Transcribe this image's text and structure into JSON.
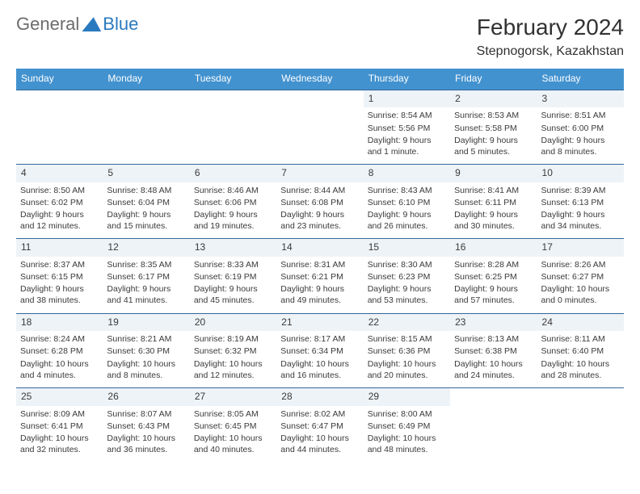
{
  "brand": {
    "part1": "General",
    "part2": "Blue"
  },
  "title": "February 2024",
  "location": "Stepnogorsk, Kazakhstan",
  "dayHeaders": [
    "Sunday",
    "Monday",
    "Tuesday",
    "Wednesday",
    "Thursday",
    "Friday",
    "Saturday"
  ],
  "colors": {
    "header_bg": "#4292cf",
    "header_text": "#ffffff",
    "rule": "#34679b",
    "daynum_bg": "#eef3f7"
  },
  "weeks": [
    [
      null,
      null,
      null,
      null,
      {
        "n": "1",
        "sr": "8:54 AM",
        "ss": "5:56 PM",
        "dl": "9 hours and 1 minute."
      },
      {
        "n": "2",
        "sr": "8:53 AM",
        "ss": "5:58 PM",
        "dl": "9 hours and 5 minutes."
      },
      {
        "n": "3",
        "sr": "8:51 AM",
        "ss": "6:00 PM",
        "dl": "9 hours and 8 minutes."
      }
    ],
    [
      {
        "n": "4",
        "sr": "8:50 AM",
        "ss": "6:02 PM",
        "dl": "9 hours and 12 minutes."
      },
      {
        "n": "5",
        "sr": "8:48 AM",
        "ss": "6:04 PM",
        "dl": "9 hours and 15 minutes."
      },
      {
        "n": "6",
        "sr": "8:46 AM",
        "ss": "6:06 PM",
        "dl": "9 hours and 19 minutes."
      },
      {
        "n": "7",
        "sr": "8:44 AM",
        "ss": "6:08 PM",
        "dl": "9 hours and 23 minutes."
      },
      {
        "n": "8",
        "sr": "8:43 AM",
        "ss": "6:10 PM",
        "dl": "9 hours and 26 minutes."
      },
      {
        "n": "9",
        "sr": "8:41 AM",
        "ss": "6:11 PM",
        "dl": "9 hours and 30 minutes."
      },
      {
        "n": "10",
        "sr": "8:39 AM",
        "ss": "6:13 PM",
        "dl": "9 hours and 34 minutes."
      }
    ],
    [
      {
        "n": "11",
        "sr": "8:37 AM",
        "ss": "6:15 PM",
        "dl": "9 hours and 38 minutes."
      },
      {
        "n": "12",
        "sr": "8:35 AM",
        "ss": "6:17 PM",
        "dl": "9 hours and 41 minutes."
      },
      {
        "n": "13",
        "sr": "8:33 AM",
        "ss": "6:19 PM",
        "dl": "9 hours and 45 minutes."
      },
      {
        "n": "14",
        "sr": "8:31 AM",
        "ss": "6:21 PM",
        "dl": "9 hours and 49 minutes."
      },
      {
        "n": "15",
        "sr": "8:30 AM",
        "ss": "6:23 PM",
        "dl": "9 hours and 53 minutes."
      },
      {
        "n": "16",
        "sr": "8:28 AM",
        "ss": "6:25 PM",
        "dl": "9 hours and 57 minutes."
      },
      {
        "n": "17",
        "sr": "8:26 AM",
        "ss": "6:27 PM",
        "dl": "10 hours and 0 minutes."
      }
    ],
    [
      {
        "n": "18",
        "sr": "8:24 AM",
        "ss": "6:28 PM",
        "dl": "10 hours and 4 minutes."
      },
      {
        "n": "19",
        "sr": "8:21 AM",
        "ss": "6:30 PM",
        "dl": "10 hours and 8 minutes."
      },
      {
        "n": "20",
        "sr": "8:19 AM",
        "ss": "6:32 PM",
        "dl": "10 hours and 12 minutes."
      },
      {
        "n": "21",
        "sr": "8:17 AM",
        "ss": "6:34 PM",
        "dl": "10 hours and 16 minutes."
      },
      {
        "n": "22",
        "sr": "8:15 AM",
        "ss": "6:36 PM",
        "dl": "10 hours and 20 minutes."
      },
      {
        "n": "23",
        "sr": "8:13 AM",
        "ss": "6:38 PM",
        "dl": "10 hours and 24 minutes."
      },
      {
        "n": "24",
        "sr": "8:11 AM",
        "ss": "6:40 PM",
        "dl": "10 hours and 28 minutes."
      }
    ],
    [
      {
        "n": "25",
        "sr": "8:09 AM",
        "ss": "6:41 PM",
        "dl": "10 hours and 32 minutes."
      },
      {
        "n": "26",
        "sr": "8:07 AM",
        "ss": "6:43 PM",
        "dl": "10 hours and 36 minutes."
      },
      {
        "n": "27",
        "sr": "8:05 AM",
        "ss": "6:45 PM",
        "dl": "10 hours and 40 minutes."
      },
      {
        "n": "28",
        "sr": "8:02 AM",
        "ss": "6:47 PM",
        "dl": "10 hours and 44 minutes."
      },
      {
        "n": "29",
        "sr": "8:00 AM",
        "ss": "6:49 PM",
        "dl": "10 hours and 48 minutes."
      },
      null,
      null
    ]
  ],
  "labels": {
    "sunrise": "Sunrise:",
    "sunset": "Sunset:",
    "daylight": "Daylight:"
  }
}
